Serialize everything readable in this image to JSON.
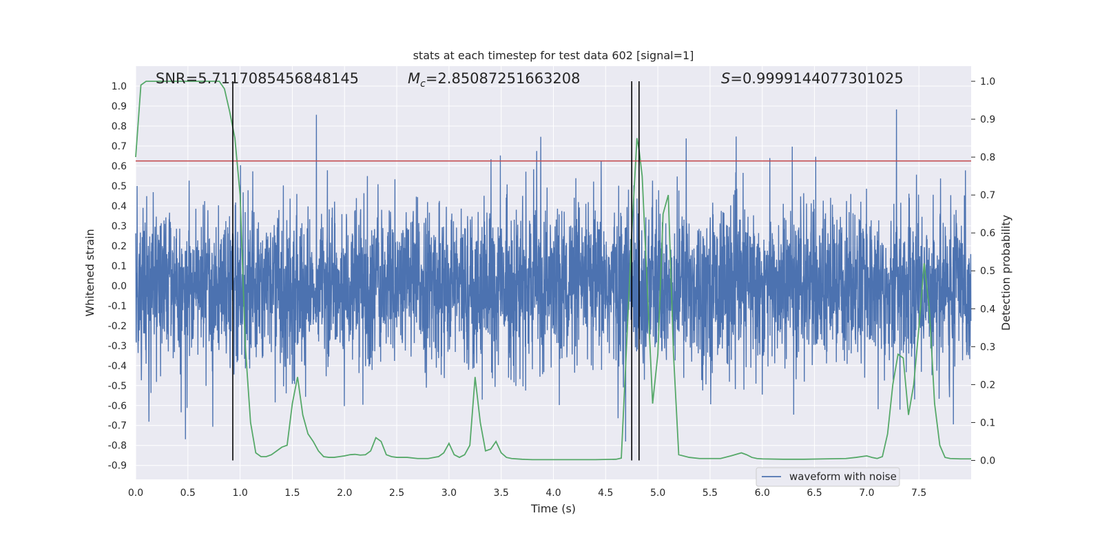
{
  "chart_data": {
    "type": "line",
    "title": "stats at each timestep for test data 602 [signal=1]",
    "xlabel": "Time (s)",
    "ylabel": "Whitened strain",
    "y2label": "Detection probability",
    "xlim": [
      0.0,
      8.0
    ],
    "ylim": [
      -0.97,
      1.1
    ],
    "y2lim": [
      -0.05,
      1.04
    ],
    "x_ticks": [
      "0.0",
      "0.5",
      "1.0",
      "1.5",
      "2.0",
      "2.5",
      "3.0",
      "3.5",
      "4.0",
      "4.5",
      "5.0",
      "5.5",
      "6.0",
      "6.5",
      "7.0",
      "7.5"
    ],
    "y_ticks": [
      "1.0",
      "0.9",
      "0.8",
      "0.7",
      "0.6",
      "0.5",
      "0.4",
      "0.3",
      "0.2",
      "0.1",
      "0.0",
      "-0.1",
      "-0.2",
      "-0.3",
      "-0.4",
      "-0.5",
      "-0.6",
      "-0.7",
      "-0.8",
      "-0.9"
    ],
    "y2_ticks": [
      "1.0",
      "0.9",
      "0.8",
      "0.7",
      "0.6",
      "0.5",
      "0.4",
      "0.3",
      "0.2",
      "0.1",
      "0.0"
    ],
    "grid": true,
    "legend_position": "lower-right",
    "annotations": {
      "snr": "SNR=5.711708545684814 5",
      "snr_text": "SNR=5.7117085456848145",
      "mc_symbol": "M",
      "mc_sub": "c",
      "mc_value": "=2.85087251663208",
      "s_symbol": "S",
      "s_value": "=0.9999144077301025"
    },
    "threshold_y": 0.625,
    "vertical_lines_x": [
      0.93,
      4.75,
      4.82
    ],
    "series": [
      {
        "name": "waveform with noise",
        "color": "#4c72b0",
        "kind": "noise",
        "sample_rate_hz": 1024,
        "envelope_points": [
          [
            0.0,
            0.45
          ],
          [
            1.0,
            0.45
          ],
          [
            2.0,
            0.48
          ],
          [
            3.0,
            0.46
          ],
          [
            4.0,
            0.47
          ],
          [
            5.0,
            0.48
          ],
          [
            6.0,
            0.46
          ],
          [
            7.0,
            0.47
          ],
          [
            8.0,
            0.48
          ]
        ]
      },
      {
        "name": "",
        "color": "#55a868",
        "kind": "probability",
        "x": [
          0.0,
          0.05,
          0.1,
          0.2,
          0.4,
          0.6,
          0.8,
          0.85,
          0.9,
          0.95,
          1.0,
          1.05,
          1.1,
          1.15,
          1.2,
          1.25,
          1.3,
          1.35,
          1.4,
          1.45,
          1.5,
          1.55,
          1.6,
          1.65,
          1.7,
          1.75,
          1.8,
          1.85,
          1.9,
          1.95,
          2.0,
          2.05,
          2.1,
          2.15,
          2.2,
          2.25,
          2.3,
          2.35,
          2.4,
          2.45,
          2.5,
          2.6,
          2.7,
          2.8,
          2.9,
          2.95,
          3.0,
          3.05,
          3.1,
          3.15,
          3.2,
          3.25,
          3.3,
          3.35,
          3.4,
          3.45,
          3.5,
          3.55,
          3.6,
          3.7,
          3.8,
          3.9,
          4.0,
          4.2,
          4.4,
          4.6,
          4.65,
          4.7,
          4.75,
          4.8,
          4.82,
          4.85,
          4.9,
          4.95,
          5.0,
          5.05,
          5.1,
          5.15,
          5.2,
          5.3,
          5.4,
          5.5,
          5.6,
          5.7,
          5.8,
          5.85,
          5.9,
          5.95,
          6.0,
          6.2,
          6.4,
          6.6,
          6.8,
          6.9,
          7.0,
          7.05,
          7.1,
          7.15,
          7.2,
          7.25,
          7.3,
          7.35,
          7.4,
          7.45,
          7.5,
          7.55,
          7.6,
          7.65,
          7.7,
          7.75,
          7.8,
          7.9,
          8.0
        ],
        "y": [
          0.8,
          0.99,
          1.0,
          1.0,
          1.0,
          1.0,
          1.0,
          0.98,
          0.92,
          0.85,
          0.7,
          0.3,
          0.1,
          0.02,
          0.01,
          0.01,
          0.015,
          0.025,
          0.035,
          0.04,
          0.15,
          0.22,
          0.12,
          0.07,
          0.05,
          0.025,
          0.01,
          0.008,
          0.008,
          0.01,
          0.012,
          0.015,
          0.016,
          0.014,
          0.015,
          0.025,
          0.06,
          0.05,
          0.015,
          0.01,
          0.008,
          0.008,
          0.005,
          0.005,
          0.01,
          0.02,
          0.045,
          0.015,
          0.008,
          0.015,
          0.04,
          0.22,
          0.1,
          0.025,
          0.03,
          0.05,
          0.02,
          0.008,
          0.005,
          0.003,
          0.002,
          0.002,
          0.002,
          0.002,
          0.002,
          0.003,
          0.006,
          0.3,
          0.6,
          0.85,
          0.82,
          0.75,
          0.45,
          0.15,
          0.28,
          0.65,
          0.7,
          0.28,
          0.015,
          0.008,
          0.005,
          0.005,
          0.005,
          0.012,
          0.02,
          0.015,
          0.008,
          0.005,
          0.004,
          0.003,
          0.003,
          0.004,
          0.005,
          0.008,
          0.012,
          0.008,
          0.005,
          0.01,
          0.07,
          0.2,
          0.28,
          0.27,
          0.12,
          0.2,
          0.35,
          0.52,
          0.4,
          0.15,
          0.04,
          0.008,
          0.005,
          0.004,
          0.004
        ]
      }
    ]
  }
}
